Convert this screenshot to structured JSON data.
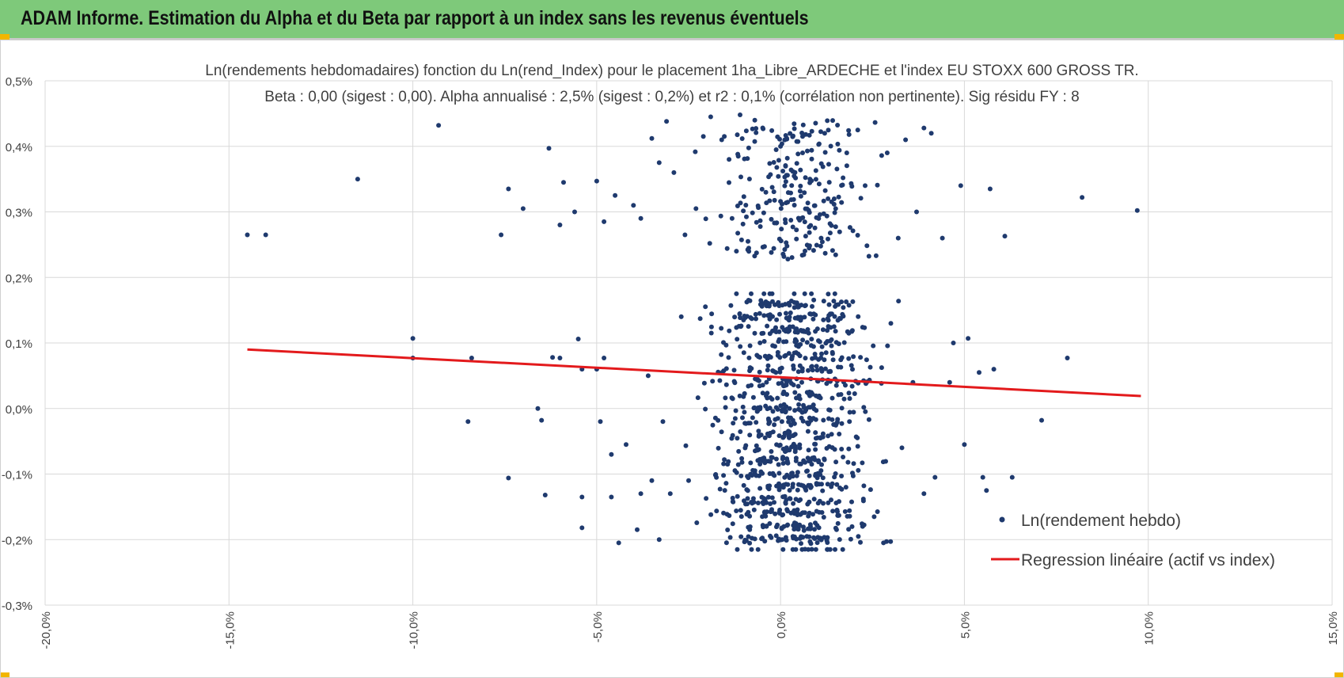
{
  "header": {
    "title": "ADAM Informe. Estimation du Alpha et du Beta par rapport à un index sans les revenus éventuels",
    "color": "#7ec97a"
  },
  "chart_data": {
    "type": "scatter",
    "title": "Ln(rendements hebdomadaires) fonction du Ln(rend_Index)  pour le placement 1ha_Libre_ARDECHE et l'index EU STOXX 600 GROSS TR.",
    "subtitle": "Beta : 0,00 (sigest : 0,00). Alpha annualisé : 2,5% (sigest : 0,2%) et r2 : 0,1% (corrélation non pertinente). Sig résidu FY : 8",
    "xlabel": "",
    "ylabel": "",
    "xlim": [
      -20,
      15
    ],
    "ylim": [
      -0.3,
      0.5
    ],
    "x_ticks": [
      -20,
      -15,
      -10,
      -5,
      0,
      5,
      10,
      15
    ],
    "y_ticks": [
      -0.3,
      -0.2,
      -0.1,
      0.0,
      0.1,
      0.2,
      0.3,
      0.4,
      0.5
    ],
    "x_tick_labels": [
      "-20,0%",
      "-15,0%",
      "-10,0%",
      "-5,0%",
      "0,0%",
      "5,0%",
      "10,0%",
      "15,0%"
    ],
    "y_tick_labels": [
      "-0,3%",
      "-0,2%",
      "-0,1%",
      "0,0%",
      "0,1%",
      "0,2%",
      "0,3%",
      "0,4%",
      "0,5%"
    ],
    "grid": true,
    "legend_position": "bottom-right",
    "series": [
      {
        "name": "Ln(rendement hebdo)",
        "kind": "scatter",
        "color": "#1f3a6e",
        "points": [
          [
            -14.5,
            0.265
          ],
          [
            -14.0,
            0.265
          ],
          [
            -11.5,
            0.35
          ],
          [
            -9.3,
            0.432
          ],
          [
            -7.6,
            0.265
          ],
          [
            -7.4,
            0.335
          ],
          [
            -7.0,
            0.305
          ],
          [
            -6.3,
            0.397
          ],
          [
            -6.0,
            0.28
          ],
          [
            -5.9,
            0.345
          ],
          [
            -5.6,
            0.3
          ],
          [
            -5.0,
            0.347
          ],
          [
            -4.8,
            0.285
          ],
          [
            -4.5,
            0.325
          ],
          [
            -4.0,
            0.31
          ],
          [
            -3.8,
            0.29
          ],
          [
            -3.5,
            0.412
          ],
          [
            -3.3,
            0.375
          ],
          [
            -3.1,
            0.438
          ],
          [
            -2.9,
            0.36
          ],
          [
            -2.6,
            0.265
          ],
          [
            -2.3,
            0.305
          ],
          [
            -2.1,
            0.415
          ],
          [
            -1.9,
            0.445
          ],
          [
            -1.6,
            0.41
          ],
          [
            -1.4,
            0.38
          ],
          [
            -1.2,
            0.24
          ],
          [
            -1.1,
            0.448
          ],
          [
            -0.7,
            0.44
          ],
          [
            -0.4,
            0.33
          ],
          [
            0.0,
            0.4
          ],
          [
            0.2,
            0.228
          ],
          [
            0.6,
            0.39
          ],
          [
            0.8,
            0.35
          ],
          [
            1.2,
            0.42
          ],
          [
            1.5,
            0.305
          ],
          [
            1.8,
            0.39
          ],
          [
            2.1,
            0.425
          ],
          [
            2.3,
            0.34
          ],
          [
            2.6,
            0.233
          ],
          [
            2.9,
            0.39
          ],
          [
            3.2,
            0.26
          ],
          [
            3.4,
            0.41
          ],
          [
            3.7,
            0.3
          ],
          [
            3.9,
            0.428
          ],
          [
            4.1,
            0.42
          ],
          [
            4.4,
            0.26
          ],
          [
            4.9,
            0.34
          ],
          [
            5.7,
            0.335
          ],
          [
            6.1,
            0.263
          ],
          [
            8.2,
            0.322
          ],
          [
            9.7,
            0.302
          ],
          [
            -10.0,
            0.107
          ],
          [
            -10.0,
            0.077
          ],
          [
            -8.4,
            0.077
          ],
          [
            -8.5,
            -0.02
          ],
          [
            -7.4,
            -0.106
          ],
          [
            -6.6,
            0.0
          ],
          [
            -6.5,
            -0.018
          ],
          [
            -6.4,
            -0.132
          ],
          [
            -6.2,
            0.078
          ],
          [
            -6.0,
            0.077
          ],
          [
            -5.5,
            0.106
          ],
          [
            -5.4,
            0.06
          ],
          [
            -5.4,
            -0.135
          ],
          [
            -5.4,
            -0.182
          ],
          [
            -5.0,
            0.06
          ],
          [
            -4.9,
            -0.02
          ],
          [
            -4.8,
            0.077
          ],
          [
            -4.6,
            -0.135
          ],
          [
            -4.6,
            -0.07
          ],
          [
            -4.4,
            -0.205
          ],
          [
            -4.2,
            -0.055
          ],
          [
            -3.9,
            -0.185
          ],
          [
            -3.8,
            -0.13
          ],
          [
            -3.6,
            0.05
          ],
          [
            -3.5,
            -0.11
          ],
          [
            -3.3,
            -0.2
          ],
          [
            -3.2,
            -0.02
          ],
          [
            -3.0,
            -0.13
          ],
          [
            -2.7,
            0.14
          ],
          [
            -2.5,
            -0.11
          ],
          [
            2.8,
            -0.205
          ],
          [
            3.0,
            0.13
          ],
          [
            3.3,
            -0.06
          ],
          [
            3.6,
            0.04
          ],
          [
            3.9,
            -0.13
          ],
          [
            4.2,
            -0.105
          ],
          [
            4.6,
            0.04
          ],
          [
            4.7,
            0.1
          ],
          [
            5.0,
            -0.055
          ],
          [
            5.1,
            0.107
          ],
          [
            5.4,
            0.055
          ],
          [
            5.5,
            -0.105
          ],
          [
            5.6,
            -0.125
          ],
          [
            5.8,
            0.06
          ],
          [
            6.3,
            -0.105
          ],
          [
            7.1,
            -0.018
          ],
          [
            7.8,
            0.077
          ]
        ],
        "cluster_bands": [
          {
            "y_min": 0.23,
            "y_max": 0.44,
            "x_center": 0.3,
            "x_spread": 1.8,
            "count": 230
          },
          {
            "y_min": -0.215,
            "y_max": 0.175,
            "x_center": 0.3,
            "x_spread": 1.8,
            "count": 950
          }
        ]
      },
      {
        "name": "Regression linéaire (actif vs index)",
        "kind": "line",
        "color": "#e31a1c",
        "points": [
          [
            -14.5,
            0.09
          ],
          [
            9.8,
            0.019
          ]
        ]
      }
    ]
  }
}
